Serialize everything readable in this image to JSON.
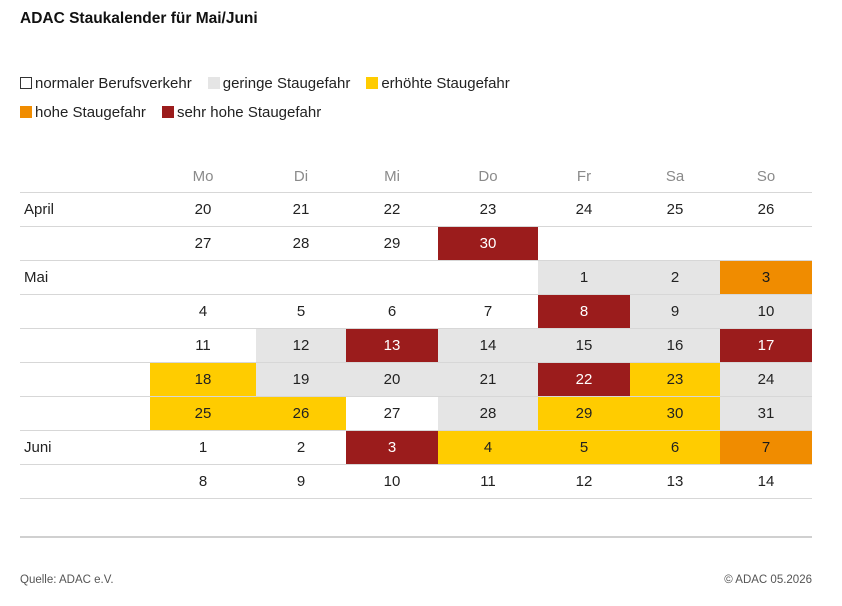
{
  "title": "ADAC Staukalender für Mai/Juni",
  "legend": [
    {
      "key": "normal",
      "label": "normaler Berufsverkehr",
      "color": "#ffffff"
    },
    {
      "key": "gering",
      "label": "geringe Staugefahr",
      "color": "#e5e5e5"
    },
    {
      "key": "erhoeht",
      "label": "erhöhte Staugefahr",
      "color": "#ffcc00"
    },
    {
      "key": "hoch",
      "label": "hohe Staugefahr",
      "color": "#f08c00"
    },
    {
      "key": "sehr_hoch",
      "label": "sehr hohe Staugefahr",
      "color": "#9b1c1c"
    }
  ],
  "chart_data": {
    "type": "table",
    "title": "ADAC Staukalender für Mai/Juni",
    "columns": [
      "Mo",
      "Di",
      "Mi",
      "Do",
      "Fr",
      "Sa",
      "So"
    ],
    "weeks": [
      {
        "month": "April",
        "days": [
          {
            "day": "20",
            "level": "normal"
          },
          {
            "day": "21",
            "level": "normal"
          },
          {
            "day": "22",
            "level": "normal"
          },
          {
            "day": "23",
            "level": "normal"
          },
          {
            "day": "24",
            "level": "normal"
          },
          {
            "day": "25",
            "level": "normal"
          },
          {
            "day": "26",
            "level": "normal"
          }
        ]
      },
      {
        "month": "",
        "days": [
          {
            "day": "27",
            "level": "normal"
          },
          {
            "day": "28",
            "level": "normal"
          },
          {
            "day": "29",
            "level": "normal"
          },
          {
            "day": "30",
            "level": "sehr_hoch"
          },
          null,
          null,
          null
        ]
      },
      {
        "month": "Mai",
        "days": [
          null,
          null,
          null,
          null,
          {
            "day": "1",
            "level": "gering"
          },
          {
            "day": "2",
            "level": "gering"
          },
          {
            "day": "3",
            "level": "hoch"
          }
        ]
      },
      {
        "month": "",
        "days": [
          {
            "day": "4",
            "level": "normal"
          },
          {
            "day": "5",
            "level": "normal"
          },
          {
            "day": "6",
            "level": "normal"
          },
          {
            "day": "7",
            "level": "normal"
          },
          {
            "day": "8",
            "level": "sehr_hoch"
          },
          {
            "day": "9",
            "level": "gering"
          },
          {
            "day": "10",
            "level": "gering"
          }
        ]
      },
      {
        "month": "",
        "days": [
          {
            "day": "11",
            "level": "normal"
          },
          {
            "day": "12",
            "level": "gering"
          },
          {
            "day": "13",
            "level": "sehr_hoch"
          },
          {
            "day": "14",
            "level": "gering"
          },
          {
            "day": "15",
            "level": "gering"
          },
          {
            "day": "16",
            "level": "gering"
          },
          {
            "day": "17",
            "level": "sehr_hoch"
          }
        ]
      },
      {
        "month": "",
        "days": [
          {
            "day": "18",
            "level": "erhoeht"
          },
          {
            "day": "19",
            "level": "gering"
          },
          {
            "day": "20",
            "level": "gering"
          },
          {
            "day": "21",
            "level": "gering"
          },
          {
            "day": "22",
            "level": "sehr_hoch"
          },
          {
            "day": "23",
            "level": "erhoeht"
          },
          {
            "day": "24",
            "level": "gering"
          }
        ]
      },
      {
        "month": "",
        "days": [
          {
            "day": "25",
            "level": "erhoeht"
          },
          {
            "day": "26",
            "level": "erhoeht"
          },
          {
            "day": "27",
            "level": "normal"
          },
          {
            "day": "28",
            "level": "gering"
          },
          {
            "day": "29",
            "level": "erhoeht"
          },
          {
            "day": "30",
            "level": "erhoeht"
          },
          {
            "day": "31",
            "level": "gering"
          }
        ]
      },
      {
        "month": "Juni",
        "days": [
          {
            "day": "1",
            "level": "normal"
          },
          {
            "day": "2",
            "level": "normal"
          },
          {
            "day": "3",
            "level": "sehr_hoch"
          },
          {
            "day": "4",
            "level": "erhoeht"
          },
          {
            "day": "5",
            "level": "erhoeht"
          },
          {
            "day": "6",
            "level": "erhoeht"
          },
          {
            "day": "7",
            "level": "hoch"
          }
        ]
      },
      {
        "month": "",
        "days": [
          {
            "day": "8",
            "level": "normal"
          },
          {
            "day": "9",
            "level": "normal"
          },
          {
            "day": "10",
            "level": "normal"
          },
          {
            "day": "11",
            "level": "normal"
          },
          {
            "day": "12",
            "level": "normal"
          },
          {
            "day": "13",
            "level": "normal"
          },
          {
            "day": "14",
            "level": "normal"
          }
        ]
      }
    ]
  },
  "footer": {
    "source": "Quelle: ADAC e.V.",
    "copyright": "© ADAC 05.2026"
  }
}
